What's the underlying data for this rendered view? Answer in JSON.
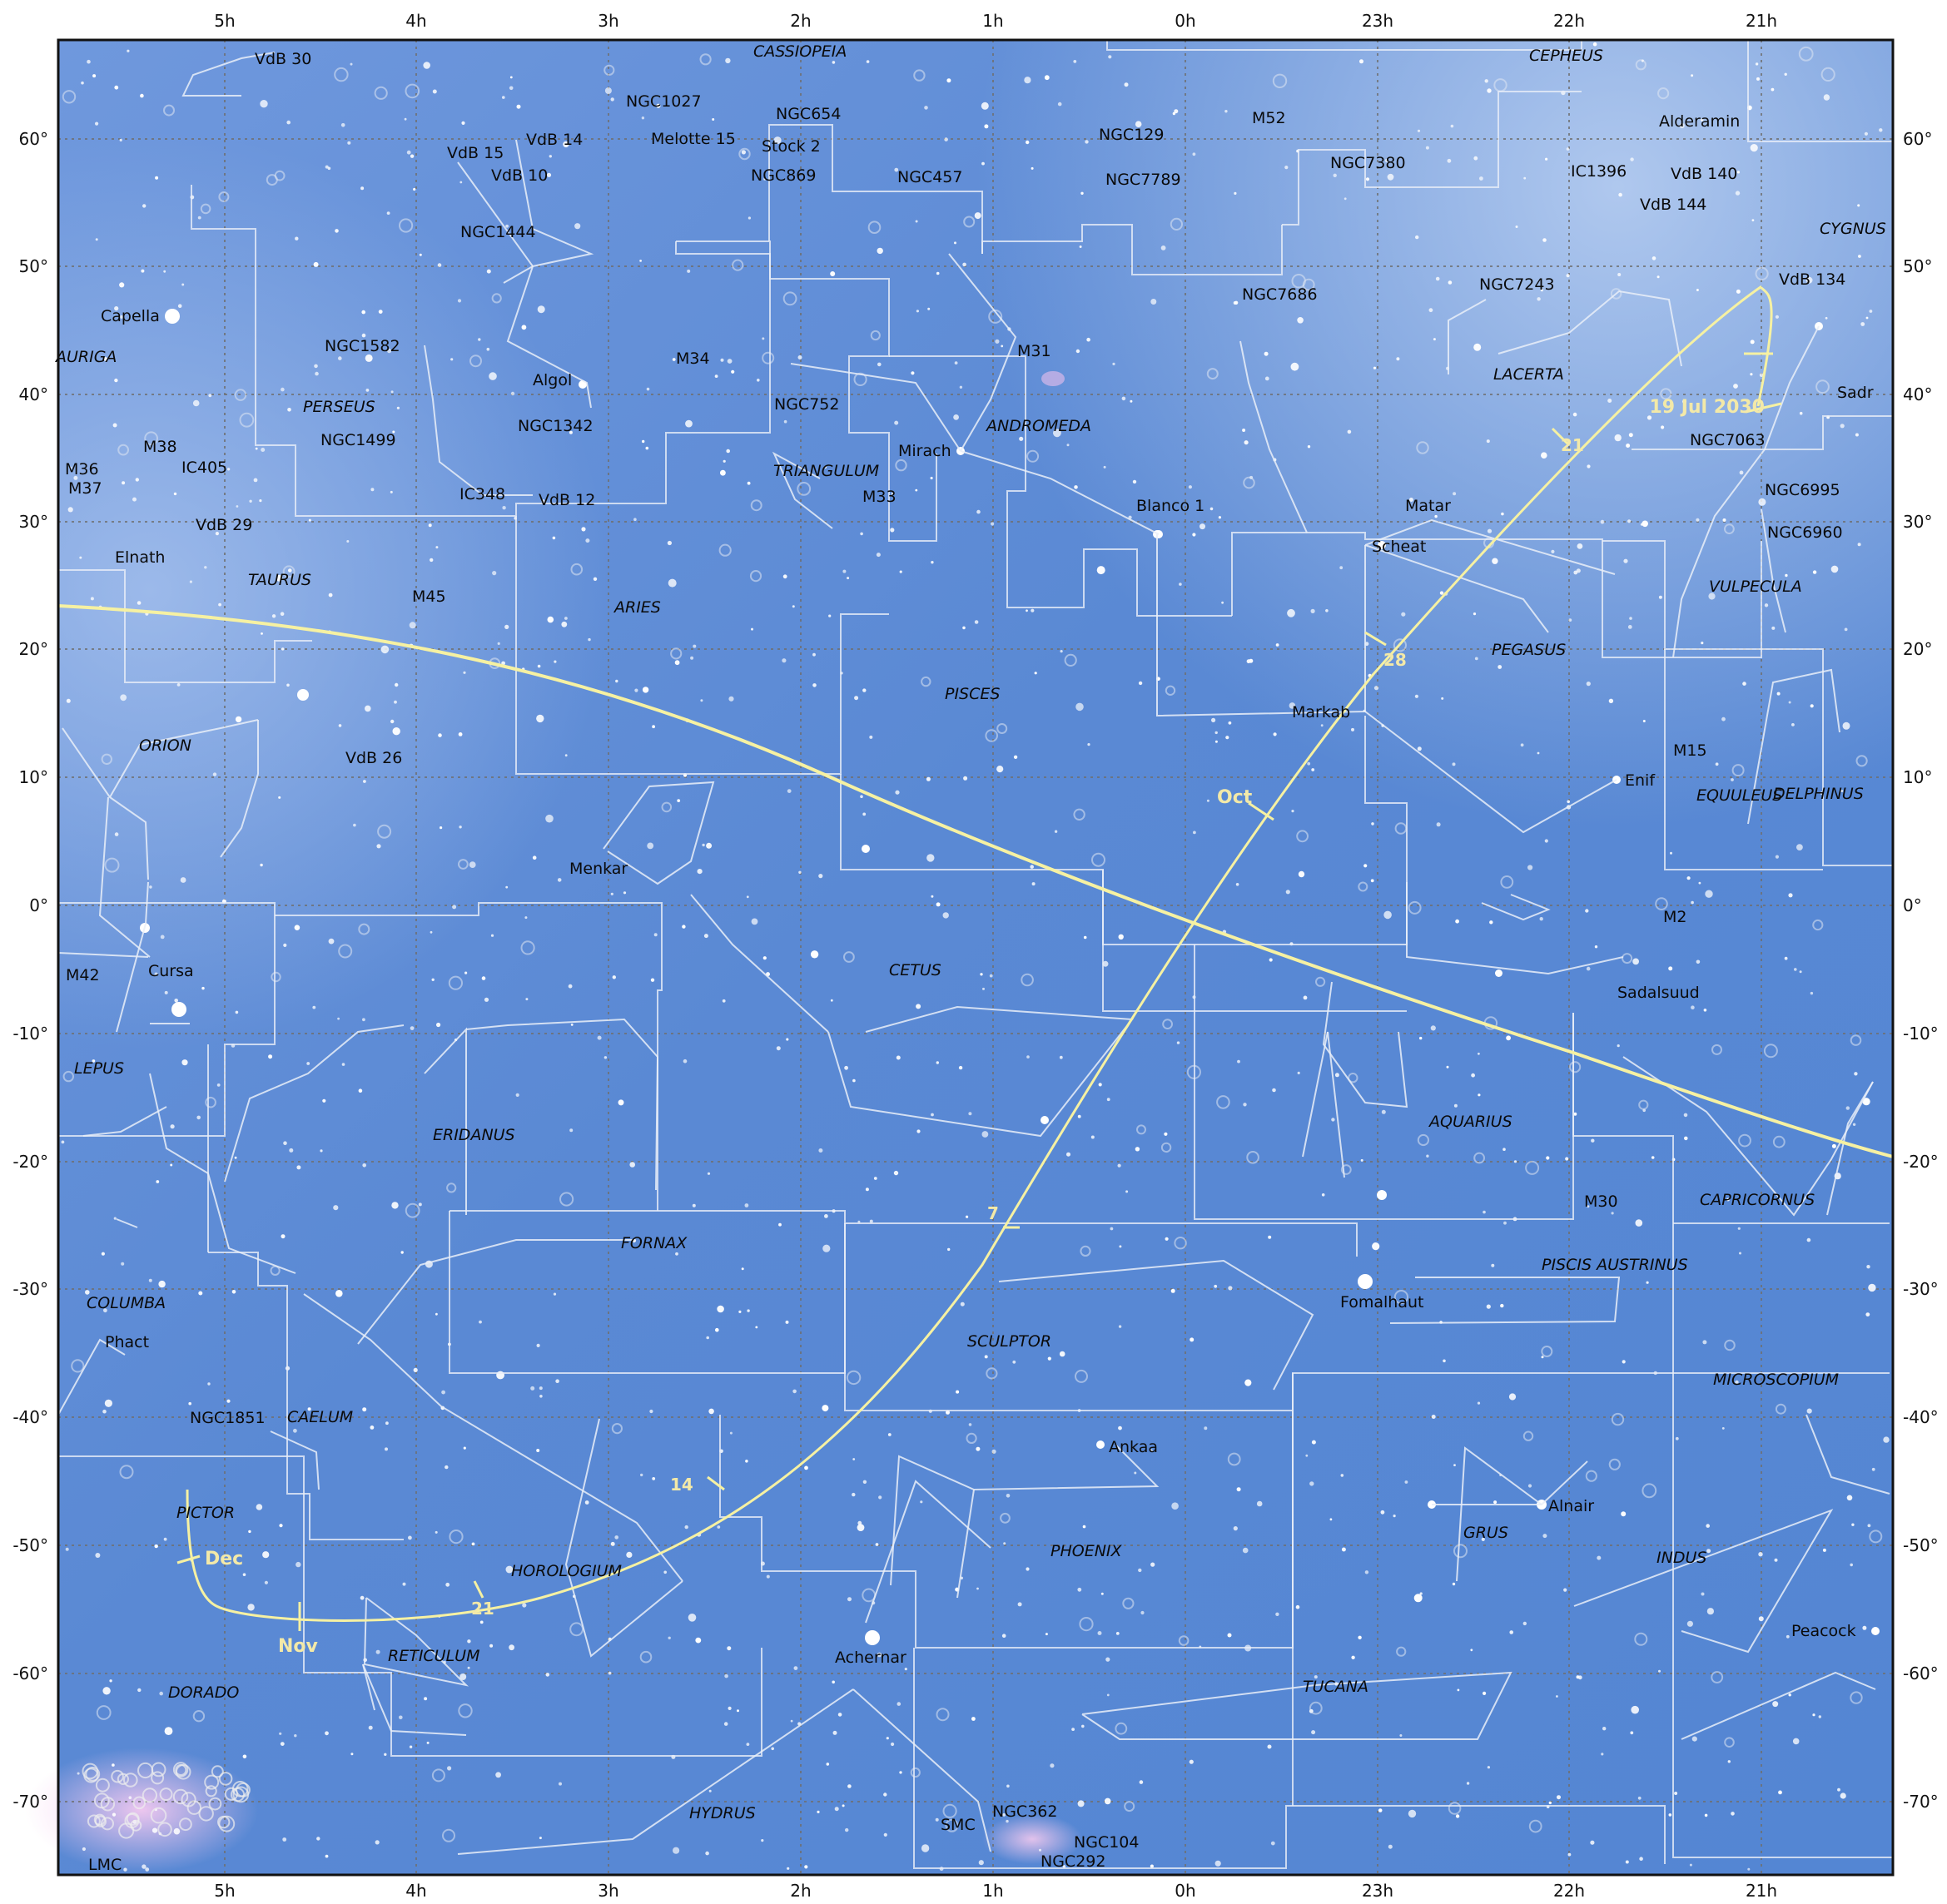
{
  "ra_labels": [
    "5h",
    "4h",
    "3h",
    "2h",
    "1h",
    "0h",
    "23h",
    "22h",
    "21h"
  ],
  "dec_labels": [
    "60°",
    "50°",
    "40°",
    "30°",
    "20°",
    "10°",
    "0°",
    "-10°",
    "-20°",
    "-30°",
    "-40°",
    "-50°",
    "-60°",
    "-70°"
  ],
  "colors": {
    "sky": "#5b8bd6",
    "sky_light": "#8fb3ea",
    "grid": "#6f6f6f",
    "lines": "#e9eef8",
    "ecliptic": "#f6f1a2",
    "comet_path": "#f6f1a2"
  },
  "constellations": [
    "CASSIOPEIA",
    "CEPHEUS",
    "CYGNUS",
    "AURIGA",
    "PERSEUS",
    "TAURUS",
    "ORION",
    "LEPUS",
    "COLUMBA",
    "CAELUM",
    "PICTOR",
    "DORADO",
    "RETICULUM",
    "HOROLOGIUM",
    "HYDRUS",
    "ERIDANUS",
    "FORNAX",
    "SCULPTOR",
    "PHOENIX",
    "TUCANA",
    "GRUS",
    "INDUS",
    "MICROSCOPIUM",
    "PISCIS AUSTRINUS",
    "CAPRICORNUS",
    "AQUARIUS",
    "CETUS",
    "PISCES",
    "ARIES",
    "TRIANGULUM",
    "ANDROMEDA",
    "PEGASUS",
    "LACERTA",
    "VULPECULA",
    "EQUULEUS",
    "DELPHINUS"
  ],
  "objects": [
    "VdB 30",
    "NGC1027",
    "NGC654",
    "Melotte 15",
    "Stock 2",
    "NGC869",
    "NGC457",
    "NGC129",
    "NGC7789",
    "M52",
    "NGC7380",
    "Alderamin",
    "IC1396",
    "VdB 140",
    "VdB 144",
    "VdB 14",
    "VdB 15",
    "VdB 10",
    "NGC1444",
    "Capella",
    "NGC1582",
    "Algol",
    "M34",
    "M31",
    "NGC7686",
    "NGC7243",
    "VdB 134",
    "NGC752",
    "Mirach",
    "NGC1342",
    "NGC1499",
    "M38",
    "M36",
    "M37",
    "IC405",
    "IC348",
    "VdB 12",
    "M33",
    "Blanco 1",
    "Matar",
    "Scheat",
    "NGC7063",
    "Sadr",
    "NGC6995",
    "NGC6960",
    "VdB 29",
    "Elnath",
    "M45",
    "VdB 26",
    "Markab",
    "M15",
    "Enif",
    "Menkar",
    "M2",
    "Sadalsuud",
    "M42",
    "Cursa",
    "Fomalhaut",
    "M30",
    "Phact",
    "NGC1851",
    "Ankaa",
    "Alnair",
    "Peacock",
    "Achernar",
    "NGC362",
    "SMC",
    "NGC104",
    "NGC292",
    "LMC"
  ],
  "comet_path": {
    "date_title": "19 Jul 2030",
    "months": [
      "Oct",
      "Nov",
      "Dec"
    ],
    "day_ticks": [
      "21",
      "28",
      "7",
      "14",
      "21"
    ]
  }
}
